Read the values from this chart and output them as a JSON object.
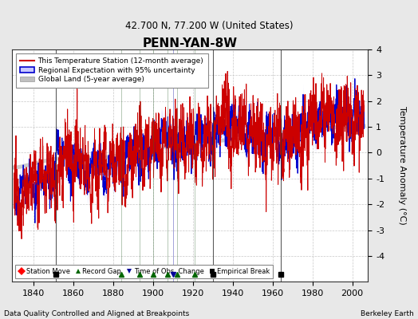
{
  "title": "PENN-YAN-8W",
  "subtitle": "42.700 N, 77.200 W (United States)",
  "ylabel": "Temperature Anomaly (°C)",
  "xlabel_note": "Data Quality Controlled and Aligned at Breakpoints",
  "credit": "Berkeley Earth",
  "ylim": [
    -5,
    4
  ],
  "xlim": [
    1829,
    2008
  ],
  "yticks": [
    -4,
    -3,
    -2,
    -1,
    0,
    1,
    2,
    3,
    4
  ],
  "xticks": [
    1840,
    1860,
    1880,
    1900,
    1920,
    1940,
    1960,
    1980,
    2000
  ],
  "background_color": "#e8e8e8",
  "plot_bg_color": "#ffffff",
  "uncertainty_color": "#c8c8ff",
  "regional_color": "#0000cc",
  "station_color": "#cc0000",
  "global_color": "#c0c0c0",
  "grid_color": "#c8c8c8",
  "markers": {
    "empirical_breaks": [
      1851,
      1930,
      1964
    ],
    "record_gaps": [
      1884,
      1893,
      1900,
      1907,
      1912,
      1921
    ],
    "station_moves": [],
    "time_obs_changes": [
      1910
    ]
  },
  "seed": 12345
}
